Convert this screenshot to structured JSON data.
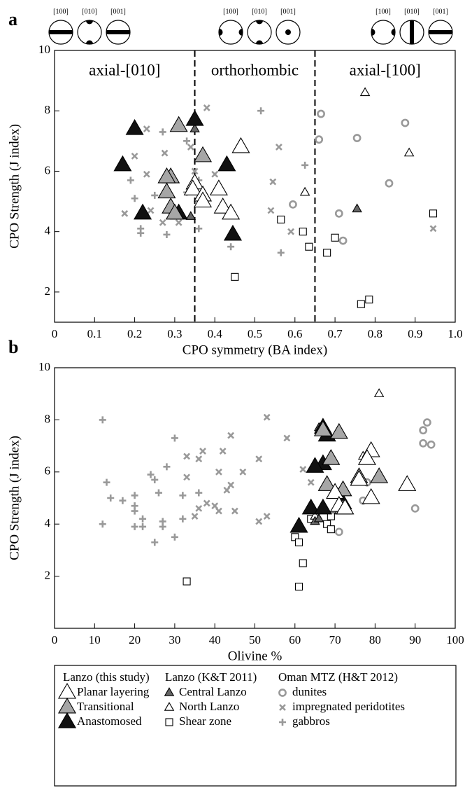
{
  "chart_data": [
    {
      "type": "scatter",
      "panel_label": "a",
      "xlabel": "CPO symmetry (BA index)",
      "ylabel": "CPO Strength (J index)",
      "xlim": [
        0,
        1
      ],
      "ylim": [
        1,
        10
      ],
      "xticks": [
        0,
        0.1,
        0.2,
        0.3,
        0.4,
        0.5,
        0.6,
        0.7,
        0.8,
        0.9,
        {
          "value": 1,
          "label": "1.0"
        }
      ],
      "yticks": [
        2,
        4,
        6,
        8,
        10
      ],
      "vlines": [
        0.35,
        0.65
      ],
      "regions": [
        "axial-[010]",
        "orthorhombic",
        "axial-[100]"
      ],
      "pole_figure_labels": [
        "[100]",
        "[010]",
        "[001]"
      ],
      "series": [
        {
          "name": "Planar layering",
          "marker": "triangle-large",
          "color": "#ffffff",
          "x": [
            0.35,
            0.345,
            0.37,
            0.37,
            0.41,
            0.42,
            0.44,
            0.465
          ],
          "y": [
            5.6,
            5.4,
            5.2,
            5.0,
            5.4,
            4.8,
            4.6,
            6.8
          ]
        },
        {
          "name": "Transitional",
          "marker": "triangle-large",
          "color": "#a6a6a6",
          "x": [
            0.29,
            0.28,
            0.28,
            0.29,
            0.3,
            0.31,
            0.37
          ],
          "y": [
            5.8,
            5.8,
            5.3,
            4.8,
            4.6,
            7.5,
            6.5
          ]
        },
        {
          "name": "Anastomosed",
          "marker": "triangle-large",
          "color": "#111111",
          "x": [
            0.2,
            0.17,
            0.22,
            0.31,
            0.35,
            0.43,
            0.445
          ],
          "y": [
            7.4,
            6.2,
            4.6,
            4.6,
            7.7,
            6.2,
            3.9
          ]
        },
        {
          "name": "Central Lanzo",
          "marker": "triangle-small",
          "color": "#666666",
          "x": [
            0.35,
            0.34,
            0.755
          ],
          "y": [
            7.4,
            4.5,
            4.75
          ]
        },
        {
          "name": "North Lanzo",
          "marker": "triangle-small",
          "color": "#ffffff",
          "x": [
            0.775,
            0.885,
            0.625
          ],
          "y": [
            8.6,
            6.6,
            5.3
          ]
        },
        {
          "name": "Shear zone",
          "marker": "square",
          "color": "#ffffff",
          "x": [
            0.45,
            0.565,
            0.62,
            0.635,
            0.7,
            0.68,
            0.765,
            0.785,
            0.945
          ],
          "y": [
            2.5,
            4.4,
            4.0,
            3.5,
            3.8,
            3.3,
            1.6,
            1.75,
            4.6
          ]
        },
        {
          "name": "dunites",
          "marker": "circle",
          "color": "#999999",
          "x": [
            0.665,
            0.66,
            0.755,
            0.875,
            0.835,
            0.595,
            0.71,
            0.72
          ],
          "y": [
            7.9,
            7.05,
            7.1,
            7.6,
            5.6,
            4.9,
            4.6,
            3.7
          ]
        },
        {
          "name": "impregnated peridotites",
          "marker": "x",
          "color": "#999999",
          "x": [
            0.23,
            0.38,
            0.2,
            0.275,
            0.34,
            0.35,
            0.23,
            0.4,
            0.545,
            0.56,
            0.175,
            0.24,
            0.27,
            0.31,
            0.54,
            0.59,
            0.945
          ],
          "y": [
            7.4,
            8.1,
            6.5,
            6.6,
            6.8,
            6.0,
            5.9,
            5.9,
            5.65,
            6.8,
            4.6,
            4.7,
            4.3,
            4.3,
            4.7,
            4.0,
            4.1
          ]
        },
        {
          "name": "gabbros",
          "marker": "plus",
          "color": "#999999",
          "x": [
            0.515,
            0.27,
            0.33,
            0.19,
            0.25,
            0.2,
            0.33,
            0.36,
            0.215,
            0.28,
            0.44,
            0.565,
            0.625,
            0.36,
            0.215
          ],
          "y": [
            8.0,
            7.3,
            7.0,
            5.7,
            5.2,
            5.1,
            5.3,
            5.7,
            3.95,
            3.9,
            3.5,
            3.3,
            6.2,
            4.1,
            4.1
          ]
        }
      ]
    },
    {
      "type": "scatter",
      "panel_label": "b",
      "xlabel": "Olivine %",
      "ylabel": "CPO Strength (J index)",
      "xlim": [
        0,
        100
      ],
      "ylim": [
        0,
        10
      ],
      "xticks": [
        0,
        10,
        20,
        30,
        40,
        50,
        60,
        70,
        80,
        90,
        100
      ],
      "yticks": [
        2,
        4,
        6,
        8,
        10
      ],
      "legend_groups": [
        "Lanzo (this study)",
        "Lanzo (K&T 2011)",
        "Oman MTZ (H&T 2012)"
      ],
      "series": [
        {
          "name": "Planar layering",
          "marker": "triangle-large",
          "color": "#ffffff",
          "x": [
            88,
            79,
            79,
            70,
            71,
            72.5,
            78,
            76
          ],
          "y": [
            5.5,
            6.8,
            5.0,
            5.2,
            4.7,
            4.6,
            6.5,
            5.7
          ]
        },
        {
          "name": "Transitional",
          "marker": "triangle-large",
          "color": "#a6a6a6",
          "x": [
            71,
            67,
            69,
            68,
            72,
            76,
            81,
            72
          ],
          "y": [
            7.5,
            7.6,
            6.5,
            5.5,
            5.3,
            5.8,
            5.8,
            4.6
          ]
        },
        {
          "name": "Anastomosed",
          "marker": "triangle-large",
          "color": "#111111",
          "x": [
            67,
            68,
            67,
            65,
            61,
            64,
            67,
            72
          ],
          "y": [
            7.7,
            7.4,
            6.3,
            6.2,
            3.9,
            4.6,
            4.6,
            4.8
          ]
        },
        {
          "name": "Central Lanzo",
          "marker": "triangle-small",
          "color": "#666666",
          "x": [
            66,
            65,
            66
          ],
          "y": [
            7.7,
            4.1,
            4.2
          ]
        },
        {
          "name": "North Lanzo",
          "marker": "triangle-small",
          "color": "#ffffff",
          "x": [
            81,
            77,
            65
          ],
          "y": [
            9.0,
            6.6,
            4.3
          ]
        },
        {
          "name": "Shear zone",
          "marker": "square",
          "color": "#ffffff",
          "x": [
            33,
            60,
            61,
            62,
            61,
            68,
            69,
            69,
            64
          ],
          "y": [
            1.8,
            3.5,
            3.3,
            2.5,
            1.6,
            4.0,
            3.8,
            4.3,
            4.2
          ]
        },
        {
          "name": "dunites",
          "marker": "circle",
          "color": "#999999",
          "x": [
            92,
            93,
            92,
            94,
            78,
            77,
            90,
            71
          ],
          "y": [
            7.6,
            7.9,
            7.1,
            7.05,
            5.6,
            4.9,
            4.6,
            3.7
          ]
        },
        {
          "name": "impregnated peridotites",
          "marker": "x",
          "color": "#999999",
          "x": [
            53,
            44,
            58,
            37,
            42,
            51,
            33,
            36,
            41,
            47,
            62,
            64,
            33,
            43,
            44,
            36,
            38,
            40,
            41,
            45,
            51,
            53,
            35
          ],
          "y": [
            8.1,
            7.4,
            7.3,
            6.8,
            6.8,
            6.5,
            6.6,
            6.5,
            6.0,
            6.0,
            6.1,
            5.6,
            5.8,
            5.3,
            5.5,
            4.6,
            4.8,
            4.7,
            4.5,
            4.5,
            4.1,
            4.3,
            4.3
          ]
        },
        {
          "name": "gabbros",
          "marker": "plus",
          "color": "#999999",
          "x": [
            12,
            30,
            13,
            28,
            24,
            25,
            26,
            14,
            17,
            20,
            20,
            20,
            22,
            22,
            20,
            12,
            27,
            27,
            25,
            30,
            32,
            32,
            36
          ],
          "y": [
            8.0,
            7.3,
            5.6,
            6.2,
            5.9,
            5.7,
            5.2,
            5.0,
            4.9,
            5.1,
            4.7,
            4.5,
            4.2,
            3.9,
            3.9,
            4.0,
            4.1,
            3.9,
            3.3,
            3.5,
            4.2,
            5.1,
            5.2
          ]
        }
      ]
    }
  ]
}
